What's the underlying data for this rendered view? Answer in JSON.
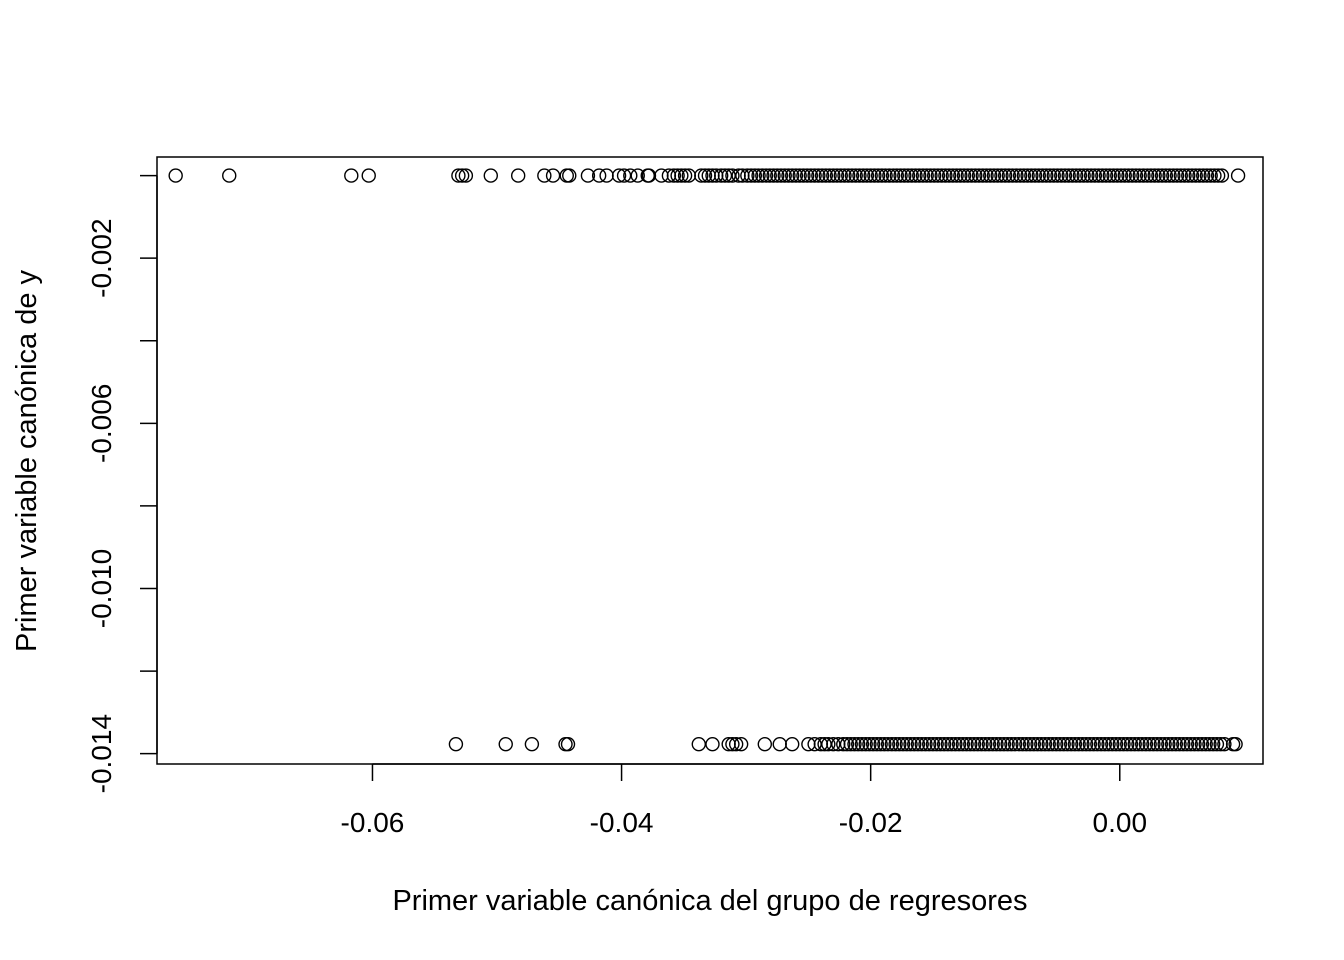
{
  "chart_data": {
    "type": "scatter",
    "title": "",
    "xlabel": "Primer variable canónica del grupo de regresores",
    "ylabel": "Primer variable canónica de y",
    "xlim": [
      -0.0773,
      0.0115
    ],
    "ylim": [
      -0.01425,
      0.00045
    ],
    "x_ticks": [
      {
        "value": -0.06,
        "label": "-0.06"
      },
      {
        "value": -0.04,
        "label": "-0.04"
      },
      {
        "value": -0.02,
        "label": "-0.02"
      },
      {
        "value": 0.0,
        "label": "0.00"
      }
    ],
    "y_ticks": [
      {
        "value": 0.0,
        "label": ""
      },
      {
        "value": -0.002,
        "label": "-0.002"
      },
      {
        "value": -0.004,
        "label": ""
      },
      {
        "value": -0.006,
        "label": "-0.006"
      },
      {
        "value": -0.008,
        "label": ""
      },
      {
        "value": -0.01,
        "label": "-0.010"
      },
      {
        "value": -0.012,
        "label": ""
      },
      {
        "value": -0.014,
        "label": "-0.014"
      }
    ],
    "marker": "open-circle",
    "grid": false,
    "legend": "none",
    "series": [
      {
        "y": 0.0,
        "x": [
          -0.0758,
          -0.0715,
          -0.0617,
          -0.0603,
          -0.0531,
          -0.0528,
          -0.0525,
          -0.0505,
          -0.0483,
          -0.0462,
          -0.0455,
          -0.0444,
          -0.0442,
          -0.0427,
          -0.0418,
          -0.0412,
          -0.0402,
          -0.0398,
          -0.0393,
          -0.0387,
          -0.0379,
          -0.0378,
          -0.0368,
          -0.0362,
          -0.0358,
          -0.0355,
          -0.0352,
          -0.0349,
          -0.0346,
          -0.0336,
          -0.0333,
          -0.033,
          -0.0327,
          -0.0324,
          -0.032,
          -0.0317,
          -0.0314,
          -0.0311,
          -0.0306,
          -0.0303,
          -0.0299,
          -0.0296,
          -0.0293,
          -0.029,
          -0.0287,
          -0.0284,
          -0.0281,
          -0.0278,
          -0.0275,
          -0.0272,
          -0.0269,
          -0.0266,
          -0.0263,
          -0.026,
          -0.0257,
          -0.0254,
          -0.0251,
          -0.0248,
          -0.0245,
          -0.0242,
          -0.0239,
          -0.0236,
          -0.0233,
          -0.023,
          -0.0227,
          -0.0224,
          -0.0221,
          -0.0218,
          -0.0215,
          -0.0212,
          -0.0209,
          -0.0206,
          -0.0203,
          -0.02,
          -0.0197,
          -0.0194,
          -0.0191,
          -0.0188,
          -0.0185,
          -0.0182,
          -0.0179,
          -0.0176,
          -0.0173,
          -0.017,
          -0.0167,
          -0.0164,
          -0.0161,
          -0.0158,
          -0.0155,
          -0.0152,
          -0.0149,
          -0.0146,
          -0.0143,
          -0.014,
          -0.0137,
          -0.0134,
          -0.0131,
          -0.0128,
          -0.0125,
          -0.0122,
          -0.0119,
          -0.0116,
          -0.0113,
          -0.011,
          -0.0107,
          -0.0104,
          -0.0101,
          -0.0098,
          -0.0095,
          -0.0092,
          -0.0089,
          -0.0086,
          -0.0083,
          -0.008,
          -0.0077,
          -0.0074,
          -0.0071,
          -0.0068,
          -0.0065,
          -0.0062,
          -0.0059,
          -0.0056,
          -0.0053,
          -0.005,
          -0.0047,
          -0.0044,
          -0.0041,
          -0.0038,
          -0.0035,
          -0.0032,
          -0.0029,
          -0.0026,
          -0.0023,
          -0.002,
          -0.0017,
          -0.0014,
          -0.0011,
          -0.0008,
          -0.0005,
          -0.0002,
          0.0001,
          0.0004,
          0.0007,
          0.001,
          0.0013,
          0.0016,
          0.0019,
          0.0022,
          0.0025,
          0.0028,
          0.0031,
          0.0034,
          0.0037,
          0.004,
          0.0043,
          0.0046,
          0.0049,
          0.0052,
          0.0055,
          0.0058,
          0.0061,
          0.0064,
          0.0067,
          0.007,
          0.0073,
          0.0076,
          0.0079,
          0.0082,
          0.0095
        ]
      },
      {
        "y": -0.01377,
        "x": [
          -0.0533,
          -0.0493,
          -0.0472,
          -0.0445,
          -0.0443,
          -0.0338,
          -0.0327,
          -0.0314,
          -0.0311,
          -0.0308,
          -0.0304,
          -0.0285,
          -0.0273,
          -0.0263,
          -0.025,
          -0.0245,
          -0.024,
          -0.0237,
          -0.0234,
          -0.023,
          -0.0226,
          -0.0222,
          -0.0219,
          -0.0216,
          -0.0213,
          -0.021,
          -0.0207,
          -0.0204,
          -0.0201,
          -0.0198,
          -0.0195,
          -0.0192,
          -0.0189,
          -0.0186,
          -0.0183,
          -0.018,
          -0.0177,
          -0.0174,
          -0.0171,
          -0.0168,
          -0.0165,
          -0.0162,
          -0.0159,
          -0.0156,
          -0.0153,
          -0.015,
          -0.0147,
          -0.0144,
          -0.0141,
          -0.0138,
          -0.0135,
          -0.0132,
          -0.0129,
          -0.0126,
          -0.0123,
          -0.012,
          -0.0117,
          -0.0114,
          -0.0111,
          -0.0108,
          -0.0105,
          -0.0102,
          -0.0099,
          -0.0096,
          -0.0093,
          -0.009,
          -0.0087,
          -0.0084,
          -0.0081,
          -0.0078,
          -0.0075,
          -0.0072,
          -0.0069,
          -0.0066,
          -0.0063,
          -0.006,
          -0.0057,
          -0.0054,
          -0.0051,
          -0.0048,
          -0.0045,
          -0.0042,
          -0.0039,
          -0.0036,
          -0.0033,
          -0.003,
          -0.0027,
          -0.0024,
          -0.0021,
          -0.0018,
          -0.0015,
          -0.0012,
          -0.0009,
          -0.0006,
          -0.0003,
          0.0,
          0.0003,
          0.0006,
          0.0009,
          0.0012,
          0.0015,
          0.0018,
          0.0021,
          0.0024,
          0.0027,
          0.003,
          0.0033,
          0.0036,
          0.0039,
          0.0042,
          0.0045,
          0.0048,
          0.0051,
          0.0054,
          0.0057,
          0.006,
          0.0063,
          0.0066,
          0.0069,
          0.0072,
          0.0075,
          0.0078,
          0.0081,
          0.0084,
          0.0091,
          0.0093
        ]
      }
    ]
  }
}
